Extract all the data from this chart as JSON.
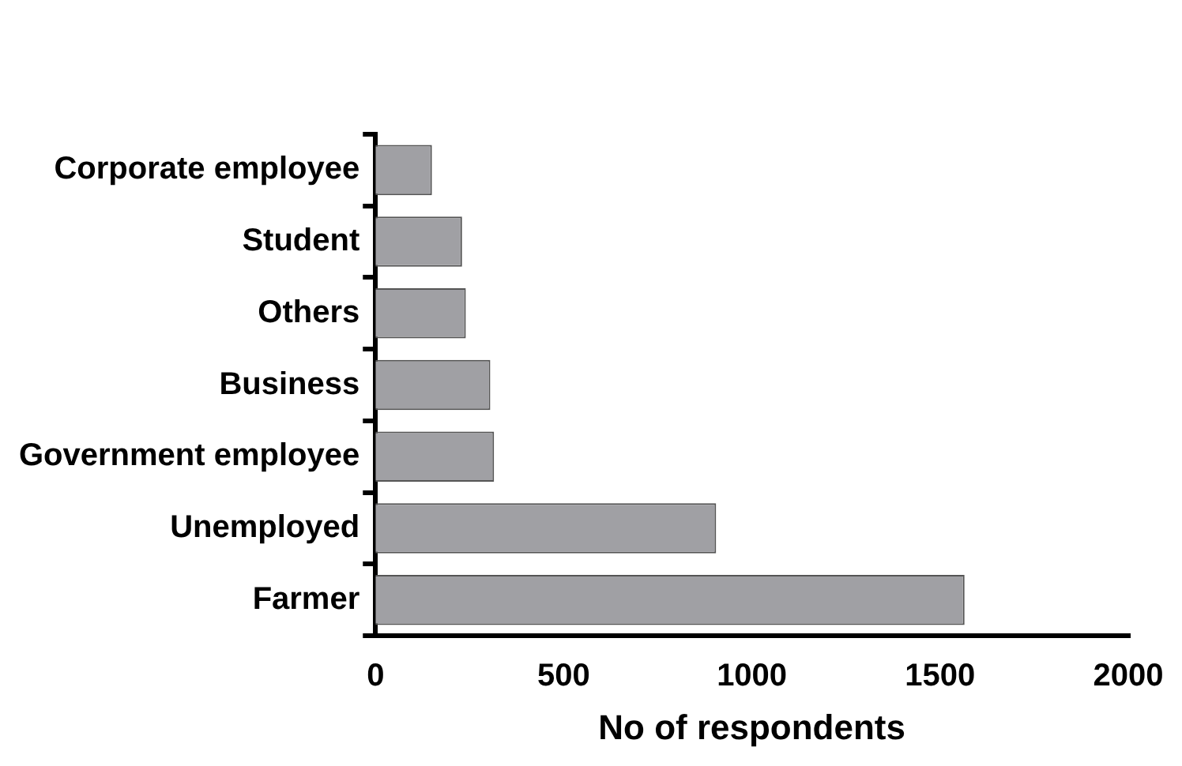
{
  "chart_data": {
    "type": "bar",
    "orientation": "horizontal",
    "xlabel": "No of respondents",
    "categories": [
      "Corporate employee",
      "Student",
      "Others",
      "Business",
      "Government employee",
      "Unemployed",
      "Farmer"
    ],
    "values": [
      150,
      230,
      240,
      305,
      315,
      905,
      1565
    ],
    "color": "#a0a0a4",
    "xlim": [
      0,
      2000
    ],
    "xticks": [
      0,
      500,
      1000,
      1500,
      2000
    ],
    "grid": false,
    "legend": false
  }
}
